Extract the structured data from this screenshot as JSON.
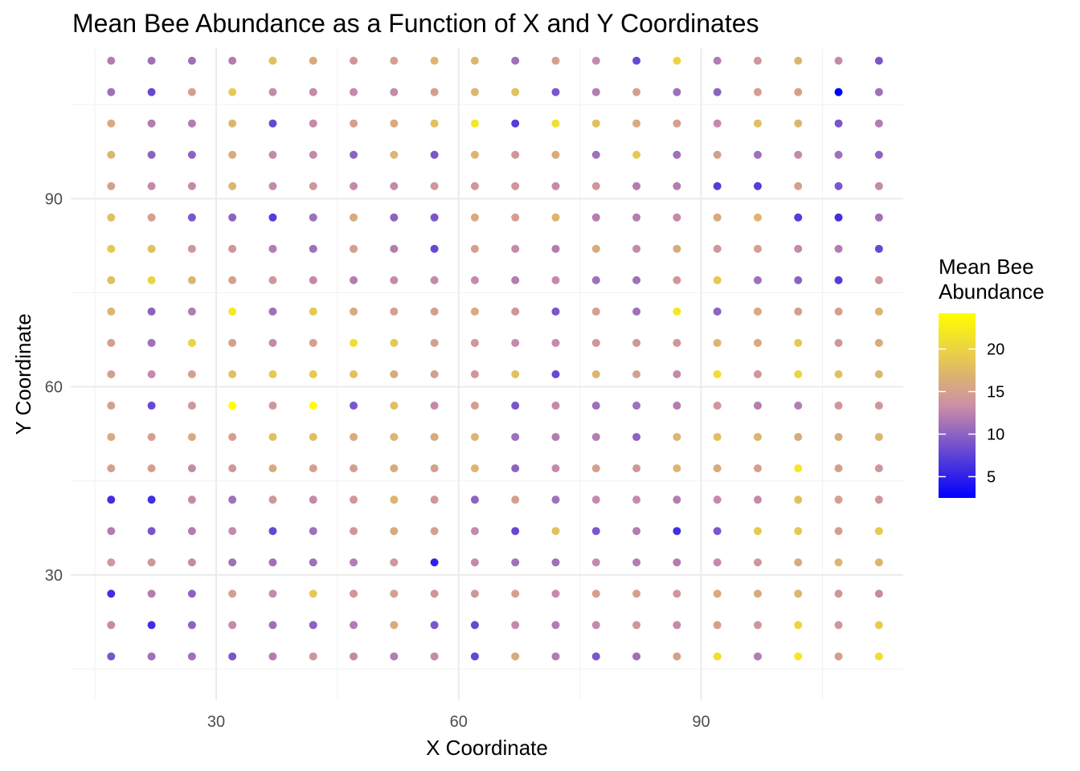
{
  "chart_data": {
    "type": "scatter",
    "title": "Mean Bee Abundance as a Function of X and Y Coordinates",
    "xlabel": "X Coordinate",
    "ylabel": "Y Coordinate",
    "xlim": [
      12,
      115
    ],
    "ylim": [
      10,
      114
    ],
    "x_ticks": [
      30,
      60,
      90
    ],
    "y_ticks": [
      30,
      60,
      90
    ],
    "grid": true,
    "legend": {
      "title_lines": [
        "Mean Bee",
        "Abundance"
      ],
      "placement": "right",
      "ticks": [
        5,
        10,
        15,
        20
      ],
      "min": 2.5,
      "max": 24.2,
      "colors": {
        "low": "#0000ff",
        "mid": "#cc8fa6",
        "high": "#ffff00"
      }
    },
    "x": [
      17,
      22,
      27,
      32,
      37,
      42,
      47,
      52,
      57,
      62,
      67,
      72,
      77,
      82,
      87,
      92,
      97,
      102,
      107,
      112
    ],
    "y": [
      112,
      107,
      102,
      97,
      92,
      87,
      82,
      77,
      72,
      67,
      62,
      57,
      52,
      47,
      42,
      37,
      32,
      27,
      22,
      17
    ],
    "values": [
      [
        12,
        11,
        11,
        12,
        18,
        16,
        14,
        15,
        17,
        17,
        11,
        15,
        13,
        8,
        20,
        12,
        14,
        17,
        13,
        9
      ],
      [
        11,
        8,
        15,
        19,
        13,
        13,
        13,
        13,
        15,
        17,
        18,
        9,
        12,
        15,
        11,
        10,
        15,
        15,
        2,
        11
      ],
      [
        16,
        12,
        12,
        17,
        8,
        13,
        15,
        16,
        18,
        22,
        7,
        21,
        18,
        16,
        15,
        13,
        18,
        17,
        9,
        12
      ],
      [
        17,
        10,
        10,
        16,
        13,
        13,
        10,
        17,
        9,
        17,
        14,
        16,
        11,
        19,
        11,
        15,
        11,
        13,
        11,
        10
      ],
      [
        15,
        13,
        13,
        17,
        13,
        14,
        13,
        13,
        14,
        14,
        14,
        13,
        14,
        12,
        12,
        7,
        7,
        15,
        9,
        13
      ],
      [
        18,
        15,
        9,
        10,
        7,
        11,
        16,
        10,
        9,
        16,
        15,
        17,
        12,
        12,
        13,
        16,
        17,
        7,
        6,
        11
      ],
      [
        19,
        18,
        14,
        14,
        12,
        11,
        15,
        12,
        8,
        15,
        13,
        12,
        16,
        13,
        16,
        14,
        15,
        13,
        12,
        8
      ],
      [
        18,
        20,
        17,
        15,
        14,
        13,
        12,
        13,
        13,
        13,
        12,
        13,
        11,
        11,
        14,
        19,
        11,
        10,
        7,
        14
      ],
      [
        17,
        10,
        12,
        22,
        11,
        19,
        16,
        15,
        15,
        16,
        14,
        9,
        15,
        11,
        22,
        10,
        16,
        15,
        15,
        17
      ],
      [
        15,
        11,
        20,
        15,
        13,
        15,
        21,
        19,
        15,
        14,
        13,
        13,
        14,
        14,
        14,
        17,
        16,
        19,
        14,
        16
      ],
      [
        15,
        13,
        15,
        18,
        19,
        19,
        18,
        16,
        15,
        14,
        18,
        8,
        17,
        15,
        13,
        21,
        14,
        20,
        18,
        17
      ],
      [
        15,
        8,
        14,
        24,
        14,
        24,
        9,
        18,
        13,
        15,
        9,
        13,
        11,
        11,
        12,
        14,
        12,
        12,
        14,
        14
      ],
      [
        16,
        15,
        16,
        15,
        18,
        18,
        16,
        17,
        16,
        17,
        11,
        12,
        12,
        10,
        17,
        18,
        17,
        16,
        16,
        17
      ],
      [
        15,
        15,
        13,
        14,
        16,
        15,
        15,
        16,
        15,
        17,
        10,
        13,
        15,
        14,
        17,
        16,
        15,
        22,
        15,
        14
      ],
      [
        6,
        6,
        13,
        11,
        14,
        13,
        14,
        17,
        14,
        10,
        15,
        11,
        13,
        13,
        12,
        13,
        13,
        18,
        15,
        14
      ],
      [
        12,
        9,
        12,
        13,
        8,
        11,
        14,
        16,
        15,
        13,
        8,
        18,
        9,
        12,
        6,
        9,
        19,
        19,
        15,
        19
      ],
      [
        14,
        14,
        13,
        11,
        11,
        11,
        12,
        14,
        5,
        13,
        11,
        11,
        13,
        12,
        12,
        13,
        14,
        16,
        17,
        17
      ],
      [
        6,
        12,
        10,
        15,
        13,
        19,
        14,
        15,
        14,
        14,
        15,
        13,
        15,
        15,
        14,
        16,
        16,
        17,
        14,
        13
      ],
      [
        13,
        6,
        10,
        13,
        11,
        10,
        12,
        16,
        9,
        8,
        13,
        12,
        13,
        14,
        13,
        15,
        14,
        20,
        14,
        19
      ],
      [
        9,
        11,
        11,
        9,
        12,
        14,
        13,
        12,
        13,
        8,
        16,
        12,
        9,
        11,
        15,
        21,
        12,
        22,
        15,
        21
      ]
    ]
  }
}
